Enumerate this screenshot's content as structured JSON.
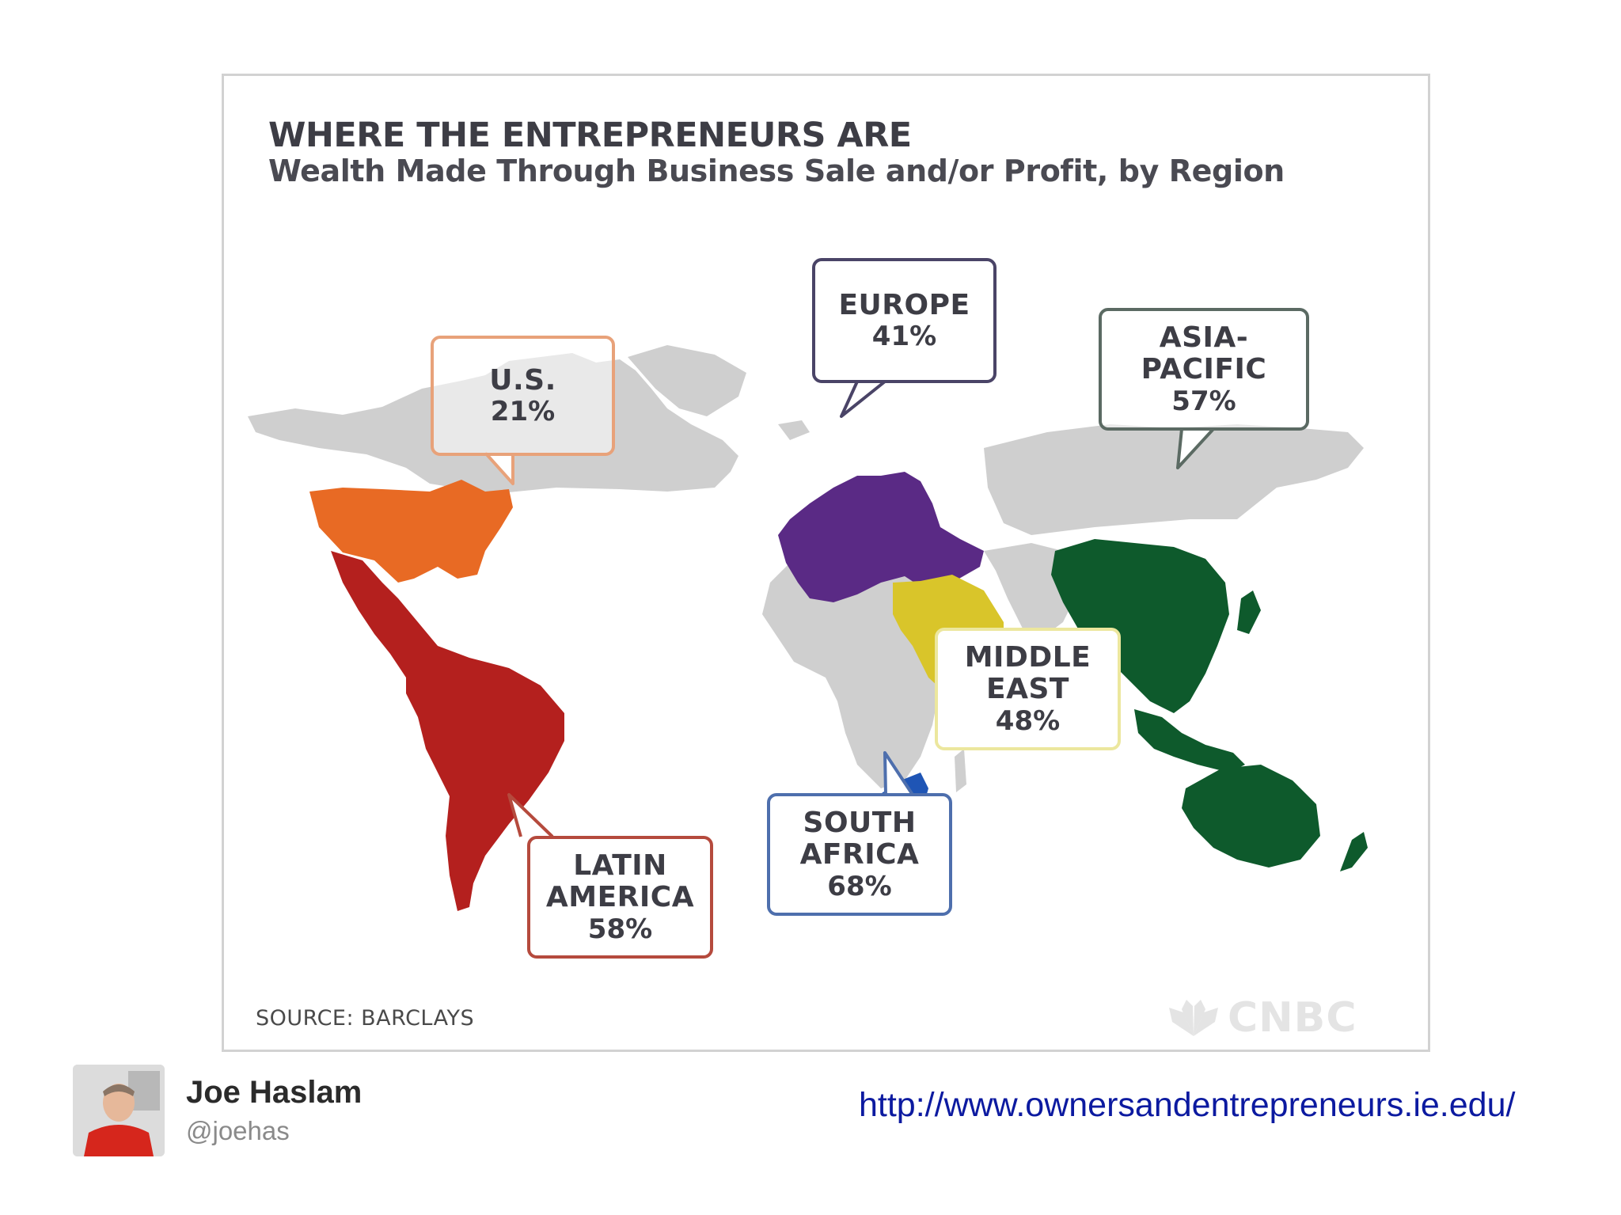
{
  "header": {
    "title": "WHERE THE ENTREPRENEURS ARE",
    "subtitle": "Wealth Made Through Business Sale and/or Profit, by Region"
  },
  "regions": [
    {
      "id": "us",
      "name": "U.S.",
      "value_label": "21%",
      "value": 21,
      "color": "#e86a24"
    },
    {
      "id": "europe",
      "name": "EUROPE",
      "value_label": "41%",
      "value": 41,
      "color": "#5a2a85"
    },
    {
      "id": "asia_pacific",
      "name": "ASIA-PACIFIC",
      "value_label": "57%",
      "value": 57,
      "color": "#0e5a2c"
    },
    {
      "id": "middle_east",
      "name_line1": "MIDDLE",
      "name_line2": "EAST",
      "value_label": "48%",
      "value": 48,
      "color": "#d9c52a"
    },
    {
      "id": "south_africa",
      "name_line1": "SOUTH",
      "name_line2": "AFRICA",
      "value_label": "68%",
      "value": 68,
      "color": "#1f55b5"
    },
    {
      "id": "latin_america",
      "name_line1": "LATIN",
      "name_line2": "AMERICA",
      "value_label": "58%",
      "value": 58,
      "color": "#b4201e"
    }
  ],
  "colors": {
    "land": "#cfcfcf",
    "us": "#e86a24",
    "europe": "#5a2a85",
    "asia_pacific": "#0e5a2c",
    "middle_east": "#d9c52a",
    "south_africa": "#1f55b5",
    "latin_america": "#b4201e",
    "us_border": "#e8a27a",
    "europe_border": "#4a4467",
    "asia_border": "#5b6a63",
    "me_border": "#ece79e",
    "sa_border": "#4e6fad",
    "la_border": "#b54a3d",
    "link": "#0c1aa0"
  },
  "source": "SOURCE: BARCLAYS",
  "brand": "CNBC",
  "footer": {
    "author_name": "Joe Haslam",
    "author_handle": "@joehas",
    "url": "http://www.ownersandentrepreneurs.ie.edu/"
  }
}
